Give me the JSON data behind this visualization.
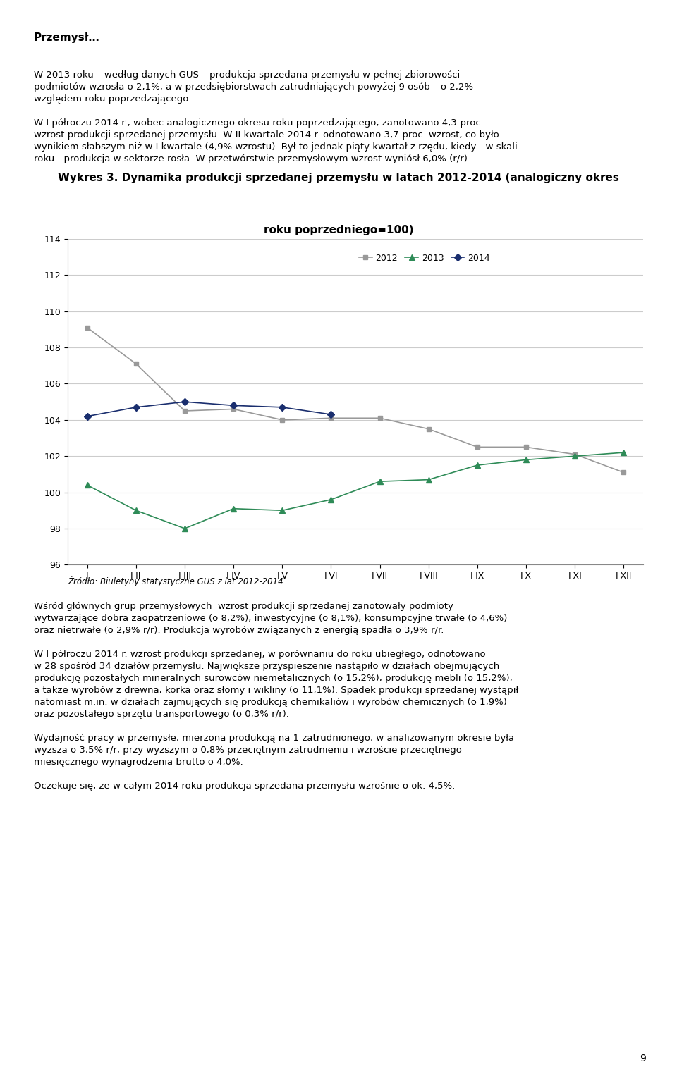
{
  "title_line1": "Wykres 3. Dynamika produkcji sprzedanej przemysłu w latach 2012-2014 (analogiczny okres",
  "title_line2": "roku poprzedniego=100)",
  "x_labels": [
    "I",
    "I-II",
    "I-III",
    "I-IV",
    "I-V",
    "I-VI",
    "I-VII",
    "I-VIII",
    "I-IX",
    "I-X",
    "I-XI",
    "I-XII"
  ],
  "series_2012": [
    109.1,
    107.1,
    104.5,
    104.6,
    104.0,
    104.1,
    104.1,
    103.5,
    102.5,
    102.5,
    102.1,
    101.1
  ],
  "series_2013": [
    100.4,
    99.0,
    98.0,
    99.1,
    99.0,
    99.6,
    100.6,
    100.7,
    101.5,
    101.8,
    102.0,
    102.2
  ],
  "series_2014": [
    104.2,
    104.7,
    105.0,
    104.8,
    104.7,
    104.3,
    null,
    null,
    null,
    null,
    null,
    null
  ],
  "color_2012": "#999999",
  "color_2013": "#2e8b57",
  "color_2014": "#1a2e6e",
  "ylim": [
    96,
    114
  ],
  "yticks": [
    96,
    98,
    100,
    102,
    104,
    106,
    108,
    110,
    112,
    114
  ],
  "source": "Źródło: Biuletyny statystyczne GUS z lat 2012-2014.",
  "legend_labels": [
    "2012",
    "2013",
    "2014"
  ],
  "title_fontsize": 11,
  "axis_fontsize": 9,
  "bg_color": "#ffffff",
  "grid_color": "#cccccc"
}
